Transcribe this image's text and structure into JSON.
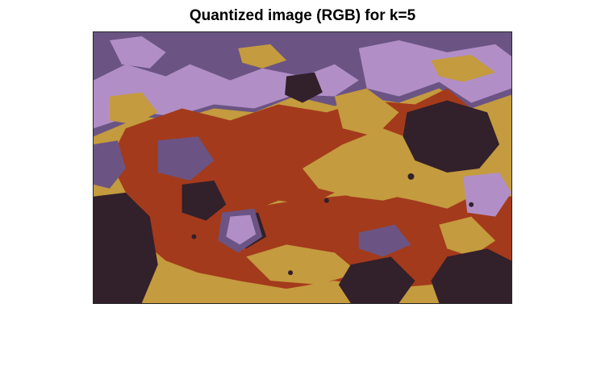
{
  "figure": {
    "title": "Quantized image (RGB) for k=5"
  },
  "image": {
    "description_note": "",
    "palette": {
      "dark_plum": "#32202a",
      "muted_purple": "#6b5484",
      "lavender": "#b18fc6",
      "rust": "#a33a1c",
      "mustard": "#c49b3e"
    }
  }
}
